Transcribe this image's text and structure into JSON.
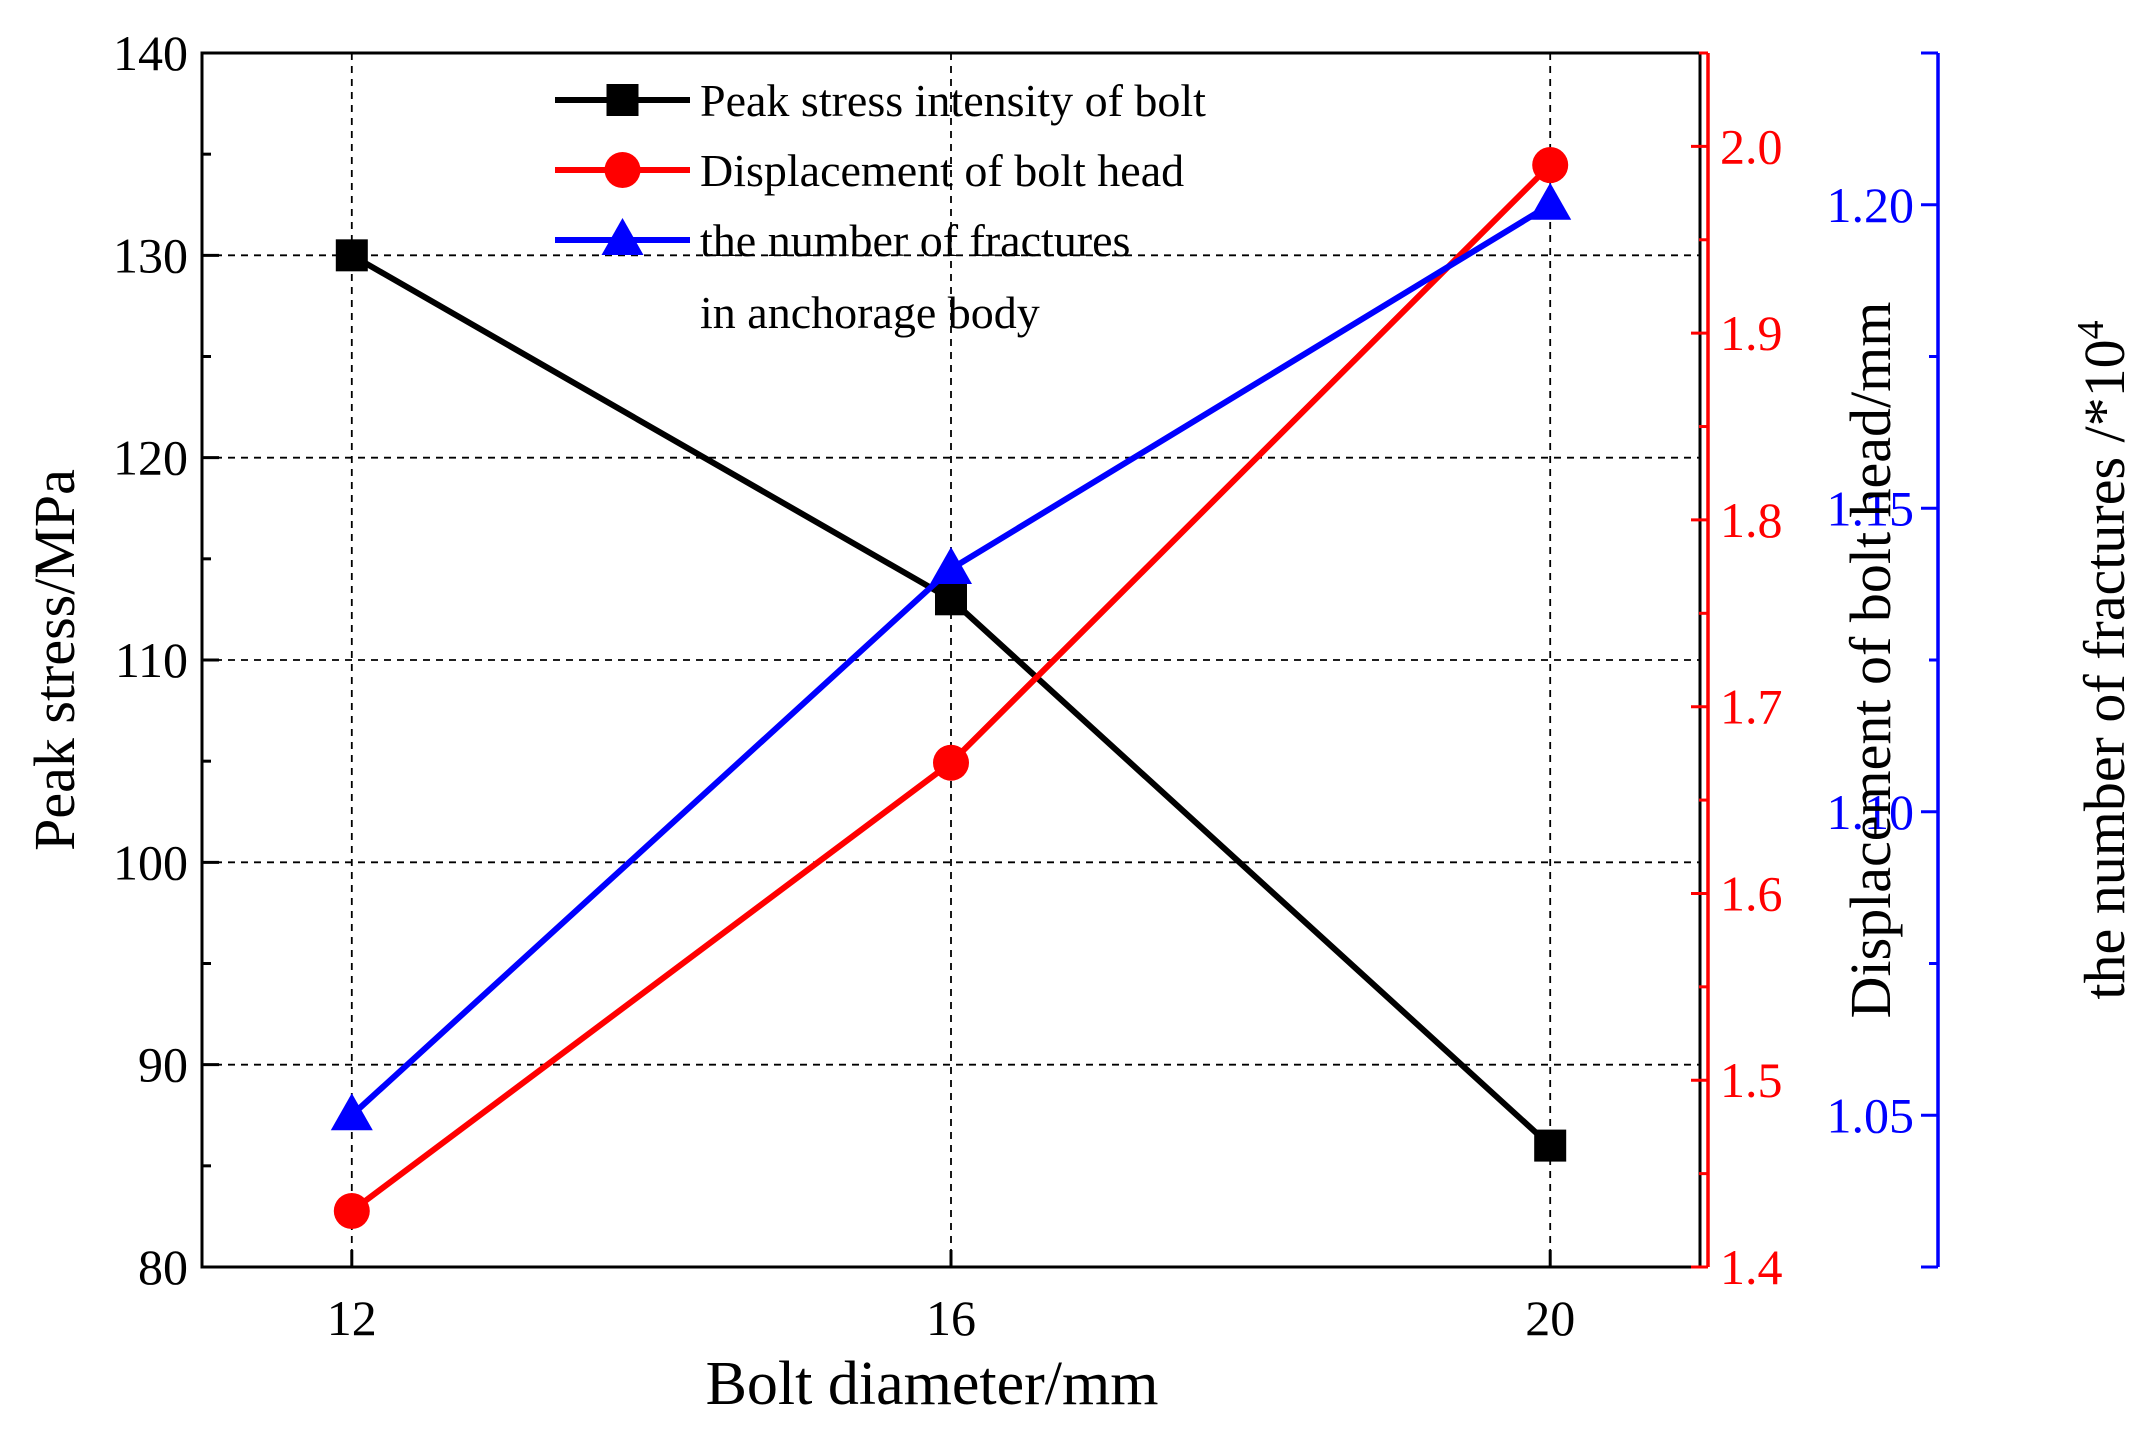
{
  "chart_data": {
    "type": "line",
    "xlabel": "Bolt diameter/mm",
    "x_ticks": [
      "12",
      "16",
      "20"
    ],
    "x": [
      12,
      16,
      20
    ],
    "xlim": [
      11,
      21
    ],
    "axes": {
      "left": {
        "label": "Peak stress/MPa",
        "ylim": [
          80,
          140
        ],
        "ticks": [
          "80",
          "90",
          "100",
          "110",
          "120",
          "130",
          "140"
        ],
        "color": "#000000"
      },
      "right1": {
        "label": "Displacement of bolt head/mm",
        "ylim": [
          1.4,
          2.05
        ],
        "ticks": [
          "1.4",
          "1.5",
          "1.6",
          "1.7",
          "1.8",
          "1.9",
          "2.0"
        ],
        "color": "#ff0000"
      },
      "right2": {
        "label": "the number of fractures /*10",
        "label_sup": "4",
        "ylim": [
          1.025,
          1.225
        ],
        "ticks": [
          "1.05",
          "1.10",
          "1.15",
          "1.20"
        ],
        "color": "#0000ff"
      }
    },
    "series": [
      {
        "name": "Peak stress intensity of bolt",
        "axis": "left",
        "marker": "square",
        "color": "#000000",
        "values": [
          130,
          113,
          86
        ]
      },
      {
        "name": "Displacement of bolt head",
        "axis": "right1",
        "marker": "circle",
        "color": "#ff0000",
        "values": [
          1.43,
          1.67,
          1.99
        ]
      },
      {
        "name": "the number of fractures",
        "name_line2": "in anchorage body",
        "axis": "right2",
        "marker": "triangle",
        "color": "#0000ff",
        "values": [
          1.05,
          1.14,
          1.2
        ]
      }
    ],
    "grid": true,
    "legend_position": "top-center"
  }
}
